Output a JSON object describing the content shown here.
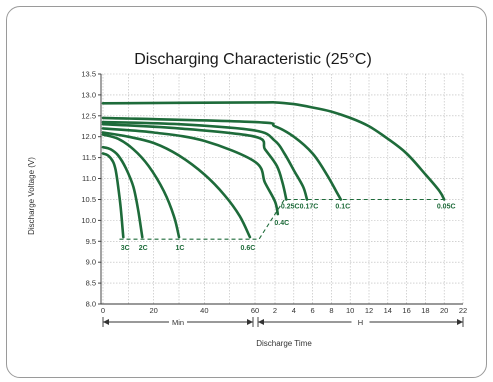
{
  "chart_data": {
    "type": "line",
    "title": "Discharging Characteristic (25°C)",
    "xlabel": "Discharge Time",
    "ylabel": "Discharge Voltage (V)",
    "ylim": [
      8.0,
      13.5
    ],
    "yticks": [
      "8.0",
      "8.5",
      "9.0",
      "9.5",
      "10.0",
      "10.5",
      "11.0",
      "11.5",
      "12.0",
      "12.5",
      "13.0",
      "13.5"
    ],
    "x_segments": [
      {
        "label": "Min",
        "range": [
          0,
          60
        ],
        "ticks": [
          "0",
          "20",
          "40",
          "60"
        ]
      },
      {
        "label": "H",
        "range": [
          1,
          22
        ],
        "ticks": [
          "2",
          "4",
          "6",
          "8",
          "10",
          "12",
          "14",
          "16",
          "18",
          "20",
          "22"
        ]
      }
    ],
    "grid": true,
    "legend": "none",
    "series": [
      {
        "name": "3C",
        "points": [
          [
            0,
            11.6
          ],
          [
            2,
            11.55
          ],
          [
            4,
            11.4
          ],
          [
            5,
            11.2
          ],
          [
            6,
            10.8
          ],
          [
            7,
            10.3
          ],
          [
            8,
            9.6
          ]
        ]
      },
      {
        "name": "2C",
        "points": [
          [
            0,
            11.75
          ],
          [
            3,
            11.7
          ],
          [
            6,
            11.55
          ],
          [
            9,
            11.25
          ],
          [
            12,
            10.8
          ],
          [
            14,
            10.2
          ],
          [
            15.5,
            9.6
          ]
        ]
      },
      {
        "name": "1C",
        "points": [
          [
            0,
            12.05
          ],
          [
            6,
            11.95
          ],
          [
            12,
            11.7
          ],
          [
            18,
            11.3
          ],
          [
            24,
            10.7
          ],
          [
            28,
            10.1
          ],
          [
            30,
            9.6
          ]
        ]
      },
      {
        "name": "0.6C",
        "points": [
          [
            0,
            12.1
          ],
          [
            10,
            12.0
          ],
          [
            20,
            11.85
          ],
          [
            30,
            11.55
          ],
          [
            40,
            11.1
          ],
          [
            48,
            10.6
          ],
          [
            54,
            10.1
          ],
          [
            58,
            9.6
          ]
        ]
      },
      {
        "name": "0.4C",
        "points": [
          [
            0,
            12.2
          ],
          [
            20,
            12.1
          ],
          [
            40,
            11.9
          ],
          [
            60,
            11.4
          ],
          [
            1.5,
            10.9
          ],
          [
            2,
            10.45
          ],
          [
            2.3,
            10.15
          ]
        ]
      },
      {
        "name": "0.25C",
        "points": [
          [
            0,
            12.3
          ],
          [
            30,
            12.2
          ],
          [
            60,
            12.0
          ],
          [
            1.5,
            11.7
          ],
          [
            2.2,
            11.3
          ],
          [
            2.8,
            10.9
          ],
          [
            3.2,
            10.5
          ]
        ]
      },
      {
        "name": "0.17C",
        "points": [
          [
            0,
            12.35
          ],
          [
            30,
            12.3
          ],
          [
            60,
            12.15
          ],
          [
            2,
            11.9
          ],
          [
            3,
            11.6
          ],
          [
            4,
            11.2
          ],
          [
            5,
            10.8
          ],
          [
            5.4,
            10.5
          ]
        ]
      },
      {
        "name": "0.1C",
        "points": [
          [
            0,
            12.45
          ],
          [
            60,
            12.35
          ],
          [
            2,
            12.25
          ],
          [
            4,
            12.0
          ],
          [
            6,
            11.6
          ],
          [
            7.5,
            11.1
          ],
          [
            8.5,
            10.7
          ],
          [
            9,
            10.5
          ]
        ]
      },
      {
        "name": "0.05C",
        "points": [
          [
            0,
            12.8
          ],
          [
            60,
            12.82
          ],
          [
            2,
            12.82
          ],
          [
            4,
            12.78
          ],
          [
            6,
            12.7
          ],
          [
            8,
            12.6
          ],
          [
            10,
            12.45
          ],
          [
            12,
            12.25
          ],
          [
            14,
            11.95
          ],
          [
            16,
            11.6
          ],
          [
            18,
            11.1
          ],
          [
            19.5,
            10.7
          ],
          [
            20,
            10.5
          ]
        ]
      }
    ],
    "cutoff_lines": [
      {
        "points": [
          [
            6.5,
            9.55
          ],
          [
            60,
            9.55
          ],
          [
            1.2,
            9.55
          ],
          [
            3,
            10.5
          ],
          [
            20,
            10.5
          ]
        ]
      }
    ]
  }
}
